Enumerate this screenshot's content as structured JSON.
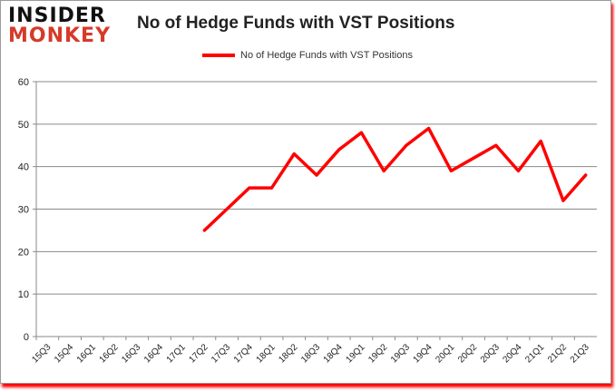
{
  "logo": {
    "line1": "INSIDER",
    "line2": "MONKEY"
  },
  "chart_data": {
    "type": "line",
    "title": "No of Hedge Funds with VST Positions",
    "legend": "top-center",
    "grid": true,
    "ylim": [
      0,
      60
    ],
    "yticks": [
      0,
      10,
      20,
      30,
      40,
      50,
      60
    ],
    "categories": [
      "15Q3",
      "15Q4",
      "16Q1",
      "16Q2",
      "16Q3",
      "16Q4",
      "17Q1",
      "17Q2",
      "17Q3",
      "17Q4",
      "18Q1",
      "18Q2",
      "18Q3",
      "18Q4",
      "19Q1",
      "19Q2",
      "19Q3",
      "19Q4",
      "20Q1",
      "20Q2",
      "20Q3",
      "20Q4",
      "21Q1",
      "21Q2",
      "21Q3"
    ],
    "series": [
      {
        "name": "No of Hedge Funds with VST Positions",
        "color": "#ff0000",
        "values": [
          null,
          null,
          null,
          null,
          null,
          null,
          null,
          25,
          30,
          35,
          35,
          43,
          38,
          44,
          48,
          39,
          45,
          49,
          39,
          42,
          45,
          39,
          46,
          32,
          38
        ]
      }
    ]
  }
}
